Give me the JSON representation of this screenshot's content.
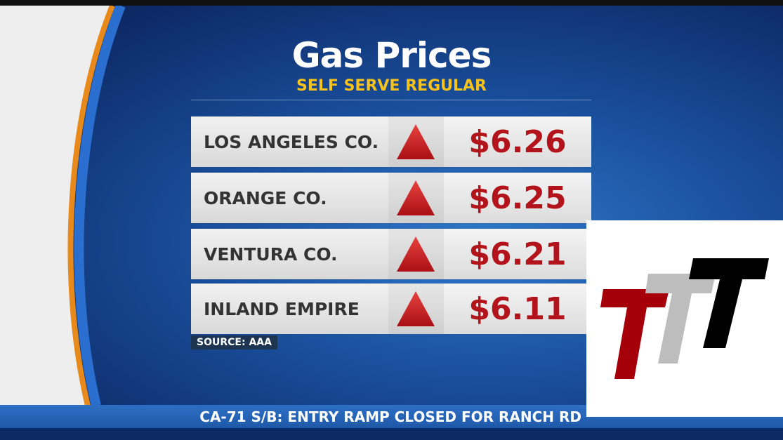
{
  "title": "Gas Prices",
  "subtitle": "SELF SERVE REGULAR",
  "rows": [
    {
      "region": "LOS ANGELES CO.",
      "price": "$6.26"
    },
    {
      "region": "ORANGE CO.",
      "price": "$6.25"
    },
    {
      "region": "VENTURA CO.",
      "price": "$6.21"
    },
    {
      "region": "INLAND EMPIRE",
      "price": "$6.11"
    }
  ],
  "source": "SOURCE: AAA",
  "ticker": "CA-71 S/B: ENTRY RAMP CLOSED FOR RANCH RD"
}
